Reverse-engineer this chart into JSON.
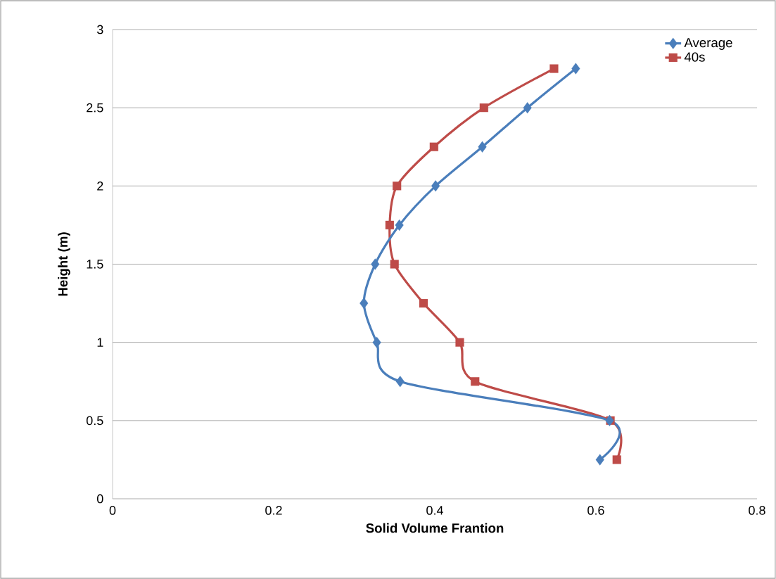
{
  "chart_data": {
    "type": "line",
    "xlabel": "Solid Volume Frantion",
    "ylabel": "Height (m)",
    "xlim": [
      0,
      0.8
    ],
    "xticks": [
      0,
      0.2,
      0.4,
      0.6,
      0.8
    ],
    "ylim": [
      0,
      3
    ],
    "yticks": [
      0,
      0.5,
      1,
      1.5,
      2,
      2.5,
      3
    ],
    "grid": "y",
    "legend": "top right",
    "series": [
      {
        "name": "Average",
        "color": "#4a7ebb",
        "marker": "diamond",
        "x": [
          0.605,
          0.617,
          0.357,
          0.328,
          0.312,
          0.326,
          0.356,
          0.401,
          0.459,
          0.515,
          0.575
        ],
        "values": [
          0.25,
          0.5,
          0.75,
          1,
          1.25,
          1.5,
          1.75,
          2,
          2.25,
          2.5,
          2.75
        ]
      },
      {
        "name": "40s",
        "color": "#be4b48",
        "marker": "square",
        "x": [
          0.626,
          0.618,
          0.45,
          0.431,
          0.386,
          0.35,
          0.344,
          0.353,
          0.399,
          0.461,
          0.548
        ],
        "values": [
          0.25,
          0.5,
          0.75,
          1,
          1.25,
          1.5,
          1.75,
          2,
          2.25,
          2.5,
          2.75
        ]
      }
    ]
  }
}
